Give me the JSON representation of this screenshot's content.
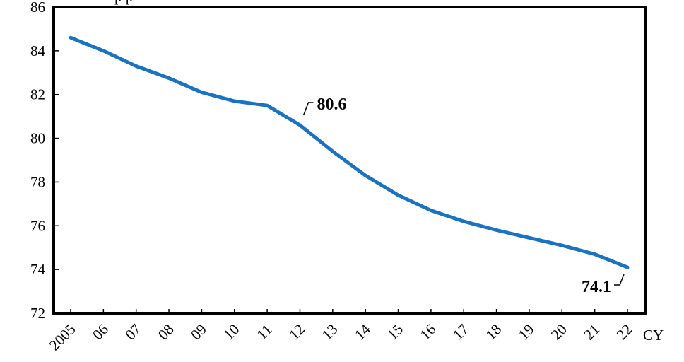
{
  "chart_data": {
    "type": "line",
    "title": "",
    "title_fragment": "p p",
    "xlabel": "CY",
    "ylabel": "",
    "x": [
      "2005",
      "06",
      "07",
      "08",
      "09",
      "10",
      "11",
      "12",
      "13",
      "14",
      "15",
      "16",
      "17",
      "18",
      "19",
      "20",
      "21",
      "22"
    ],
    "series": [
      {
        "values": [
          84.6,
          84.0,
          83.3,
          82.75,
          82.1,
          81.7,
          81.5,
          80.6,
          79.4,
          78.3,
          77.4,
          76.7,
          76.2,
          75.8,
          75.45,
          75.1,
          74.7,
          74.1
        ],
        "color": "#1a73c2"
      }
    ],
    "ylim": [
      72,
      86
    ],
    "yticks": [
      72,
      74,
      76,
      78,
      80,
      82,
      84,
      86
    ],
    "grid": false,
    "legend": "none",
    "annotations": [
      {
        "x": "12",
        "y": 80.6,
        "label": "80.6",
        "placement": "upper-right"
      },
      {
        "x": "22",
        "y": 74.1,
        "label": "74.1",
        "placement": "lower-left"
      }
    ]
  }
}
